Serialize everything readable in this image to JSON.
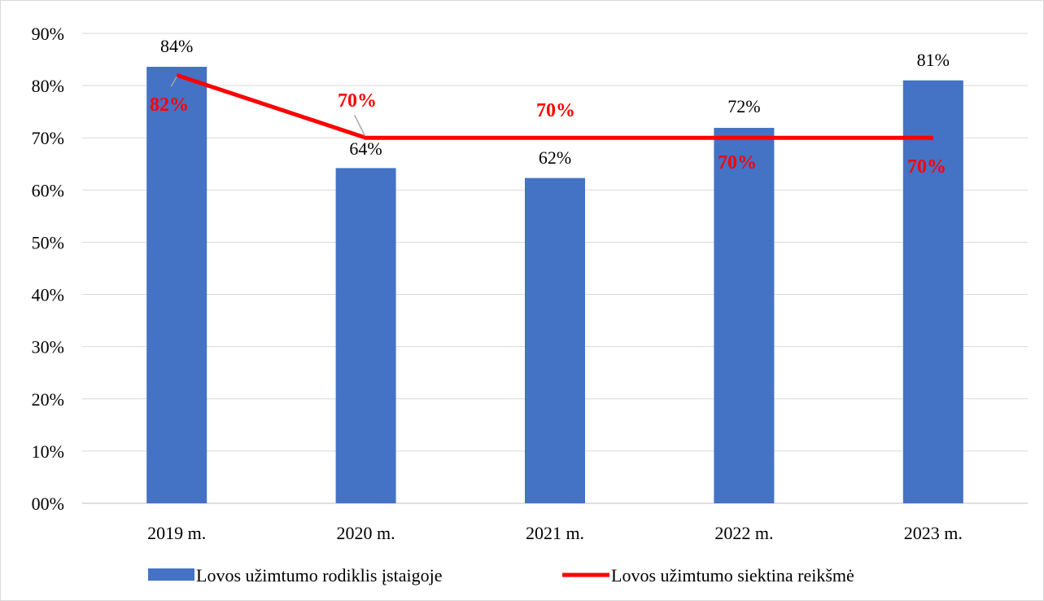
{
  "chart_data": {
    "type": "bar",
    "categories": [
      "2019 m.",
      "2020 m.",
      "2021 m.",
      "2022 m.",
      "2023 m."
    ],
    "y_ticks": [
      "00%",
      "10%",
      "20%",
      "30%",
      "40%",
      "50%",
      "60%",
      "70%",
      "80%",
      "90%"
    ],
    "ylim": [
      0,
      90
    ],
    "grid": true,
    "legend_position": "bottom",
    "series": [
      {
        "name": "Lovos užimtumo rodiklis įstaigoje",
        "type": "bar",
        "color": "#4472C4",
        "values": [
          83.6,
          64.2,
          62.3,
          71.9,
          81.0
        ],
        "labels": [
          "84%",
          "64%",
          "62%",
          "72%",
          "81%"
        ]
      },
      {
        "name": "Lovos užimtumo siektina reikšmė",
        "type": "line",
        "color": "#FF0000",
        "values": [
          82,
          70,
          70,
          70,
          70
        ],
        "labels": [
          "82%",
          "70%",
          "70%",
          "70%",
          "70%"
        ]
      }
    ]
  }
}
